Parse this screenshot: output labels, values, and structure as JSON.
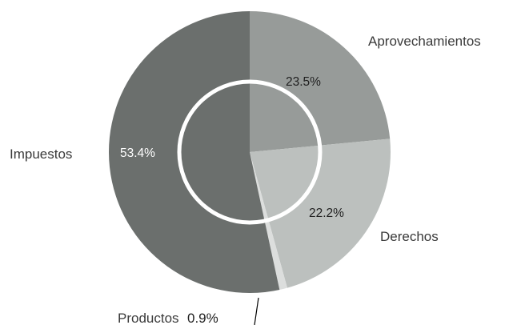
{
  "chart_data": {
    "type": "pie",
    "style": "donut with inner white ring",
    "title": "",
    "start_angle": "12 o'clock, clockwise",
    "slices": [
      {
        "name": "Aprovechamientos",
        "value": 23.5,
        "label": "23.5%",
        "color": "#979b99",
        "label_color": "#1f1f1f"
      },
      {
        "name": "Derechos",
        "value": 22.2,
        "label": "22.2%",
        "color": "#bcc0be",
        "label_color": "#1f1f1f"
      },
      {
        "name": "Productos",
        "value": 0.9,
        "label": "0.9%",
        "color": "#dcdedd",
        "label_color": "#1f1f1f"
      },
      {
        "name": "Impuestos",
        "value": 53.4,
        "label": "53.4%",
        "color": "#6b6f6d",
        "label_color": "#ffffff"
      }
    ]
  }
}
